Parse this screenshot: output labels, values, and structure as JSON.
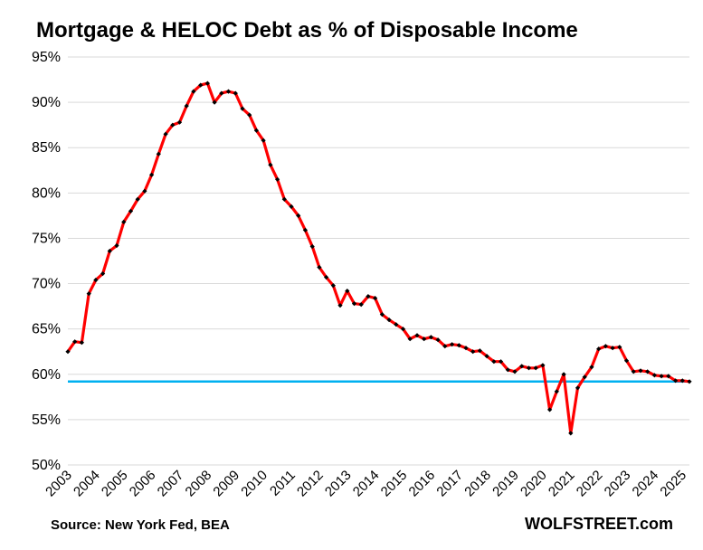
{
  "chart_data": {
    "type": "line",
    "title": "Mortgage & HELOC Debt as % of Disposable Income",
    "source": "Source: New York Fed, BEA",
    "brand": "WOLFSTREET.com",
    "ylim": [
      50,
      95
    ],
    "y_ticks": [
      "50%",
      "55%",
      "60%",
      "65%",
      "70%",
      "75%",
      "80%",
      "85%",
      "90%",
      "95%"
    ],
    "x_tick_labels": [
      "2003",
      "2004",
      "2005",
      "2006",
      "2007",
      "2008",
      "2009",
      "2010",
      "2011",
      "2012",
      "2013",
      "2014",
      "2015",
      "2016",
      "2017",
      "2018",
      "2019",
      "2020",
      "2021",
      "2022",
      "2023",
      "2024",
      "2025"
    ],
    "x_start": "2003-Q1",
    "grid": true,
    "series": [
      {
        "color": "#ff0000",
        "marker_color": "#000000",
        "values": [
          62.5,
          63.6,
          63.5,
          68.9,
          70.4,
          71.1,
          73.6,
          74.2,
          76.8,
          78.0,
          79.3,
          80.2,
          82.0,
          84.3,
          86.5,
          87.5,
          87.8,
          89.6,
          91.2,
          91.9,
          92.1,
          90.0,
          91.0,
          91.2,
          91.0,
          89.3,
          88.6,
          86.9,
          85.8,
          83.1,
          81.5,
          79.3,
          78.5,
          77.5,
          75.9,
          74.1,
          71.8,
          70.7,
          69.8,
          67.6,
          69.2,
          67.8,
          67.7,
          68.6,
          68.4,
          66.6,
          66.0,
          65.5,
          65.0,
          63.9,
          64.3,
          63.9,
          64.1,
          63.8,
          63.1,
          63.3,
          63.2,
          62.9,
          62.5,
          62.6,
          62.0,
          61.4,
          61.4,
          60.5,
          60.3,
          60.9,
          60.7,
          60.7,
          61.0,
          56.1,
          58.1,
          60.0,
          53.5,
          58.5,
          59.7,
          60.8,
          62.8,
          63.1,
          62.9,
          63.0,
          61.5,
          60.3,
          60.4,
          60.3,
          59.9,
          59.8,
          59.8,
          59.3,
          59.3,
          59.2
        ]
      }
    ],
    "reference_line": {
      "value": 59.2,
      "color": "#00b0f0"
    }
  }
}
